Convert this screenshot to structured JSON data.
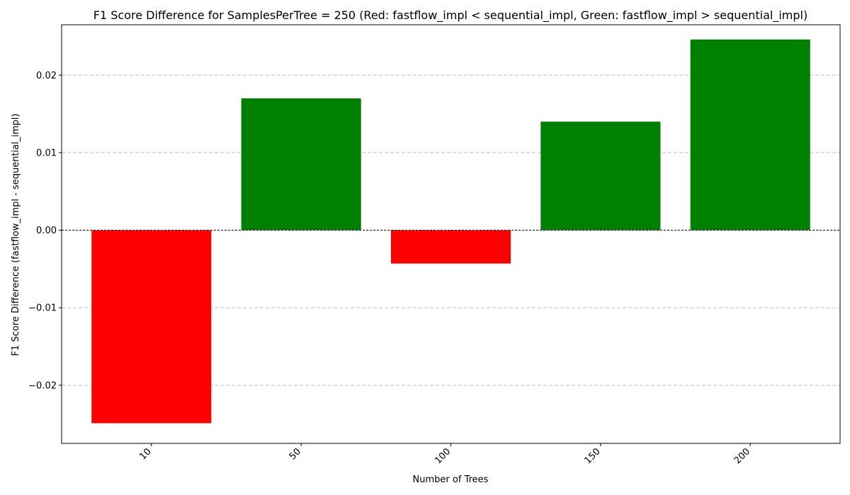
{
  "chart_data": {
    "type": "bar",
    "title": "F1 Score Difference for SamplesPerTree = 250 (Red: fastflow_impl < sequential_impl, Green: fastflow_impl > sequential_impl)",
    "xlabel": "Number of Trees",
    "ylabel": "F1 Score Difference (fastflow_impl - sequential_impl)",
    "categories": [
      "10",
      "50",
      "100",
      "150",
      "200"
    ],
    "values": [
      -0.0249,
      0.017,
      -0.0043,
      0.014,
      0.0246
    ],
    "ylim": [
      -0.0275,
      0.0265
    ],
    "yticks": [
      -0.02,
      -0.01,
      0.0,
      0.01,
      0.02
    ],
    "ytick_labels": [
      "−0.02",
      "−0.01",
      "0.00",
      "0.01",
      "0.02"
    ],
    "grid": "y",
    "colors": {
      "negative": "#ff0000",
      "positive": "#008000",
      "zero_line": "#000000",
      "grid": "#c0c0c0"
    }
  }
}
